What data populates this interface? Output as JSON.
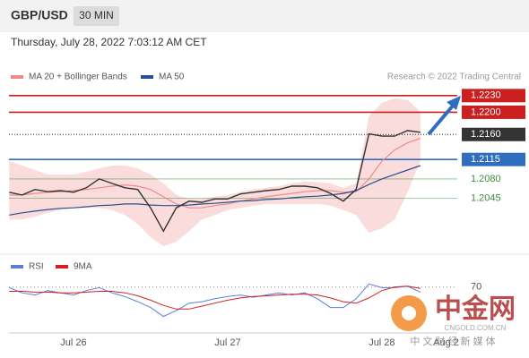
{
  "header": {
    "symbol": "GBP/USD",
    "timeframe": "30 MIN",
    "timestamp": "Thursday, July 28, 2022 7:03:12 AM CET",
    "credit": "Research © 2022 Trading Central"
  },
  "watermark": {
    "logo": "中金网",
    "site": "CNGOLD.COM.CN",
    "tagline": "中 文 财 经 新 媒 体"
  },
  "chart_data": [
    {
      "type": "line",
      "ylim": [
        1.1951,
        1.2249
      ],
      "color": "#333333",
      "values": [
        1.2056,
        1.2051,
        1.2061,
        1.2057,
        1.2059,
        1.2056,
        1.2064,
        1.208,
        1.2072,
        1.2064,
        1.2061,
        1.2028,
        1.1986,
        1.2028,
        1.204,
        1.2038,
        1.2044,
        1.2044,
        1.2053,
        1.2056,
        1.2059,
        1.2061,
        1.2067,
        1.2067,
        1.2064,
        1.2054,
        1.204,
        1.2061,
        1.2161,
        1.2157,
        1.2157,
        1.2167,
        1.2164,
        null,
        null
      ],
      "series": [
        {
          "name": "MA 20 + Bollinger Bands",
          "color": "#f08a8a",
          "band_color": "#fbdcdc",
          "values": [
            1.2051,
            1.2051,
            1.2054,
            1.2056,
            1.2057,
            1.2059,
            1.2061,
            1.2064,
            1.2067,
            1.2069,
            1.2067,
            1.2061,
            1.2048,
            1.2035,
            1.2028,
            1.2028,
            1.2032,
            1.2035,
            1.204,
            1.2044,
            1.2048,
            1.2051,
            1.2054,
            1.2057,
            1.2059,
            1.2059,
            1.2056,
            1.2057,
            1.208,
            1.2112,
            1.2132,
            1.2145,
            1.2153,
            null,
            null
          ],
          "upper": [
            1.2112,
            1.2104,
            1.2096,
            1.2088,
            1.2088,
            1.2088,
            1.2093,
            1.2099,
            1.2104,
            1.2104,
            1.2099,
            1.2088,
            1.2072,
            1.2051,
            1.2044,
            1.2044,
            1.2048,
            1.2051,
            1.2057,
            1.2061,
            1.2064,
            1.2067,
            1.2072,
            1.2075,
            1.2074,
            1.2072,
            1.2064,
            1.2072,
            1.2193,
            1.2217,
            1.2225,
            1.2222,
            1.2201,
            null,
            null
          ],
          "lower": [
            1.2007,
            1.2007,
            1.2012,
            1.2019,
            1.2024,
            1.2028,
            1.2028,
            1.2028,
            1.2024,
            1.2015,
            1.1999,
            1.1975,
            1.1959,
            1.1967,
            1.1986,
            1.2007,
            1.2015,
            1.2024,
            1.2028,
            1.2032,
            1.2035,
            1.2035,
            1.2035,
            1.2035,
            1.2035,
            1.2032,
            1.2024,
            1.2015,
            1.1983,
            1.1991,
            1.2007,
            1.2056,
            1.2112,
            null,
            null
          ]
        },
        {
          "name": "MA 50",
          "color": "#2a4f8f",
          "values": [
            1.2015,
            1.2019,
            1.2022,
            1.2025,
            1.2027,
            1.2028,
            1.203,
            1.2032,
            1.2033,
            1.2035,
            1.2035,
            1.2033,
            1.2032,
            1.2032,
            1.2033,
            1.2035,
            1.2036,
            1.2038,
            1.204,
            1.2041,
            1.2043,
            1.2044,
            1.2046,
            1.2048,
            1.2049,
            1.2051,
            1.2054,
            1.2059,
            1.207,
            1.208,
            1.2088,
            1.2096,
            1.2104,
            null,
            null
          ]
        }
      ],
      "levels": [
        {
          "value": 1.223,
          "label": "1.2230",
          "color": "#cc1f1f",
          "box": true
        },
        {
          "value": 1.22,
          "label": "1.2200",
          "color": "#cc1f1f",
          "box": true
        },
        {
          "value": 1.216,
          "label": "1.2160",
          "color": "#333333",
          "box": true,
          "dash": true
        },
        {
          "value": 1.2115,
          "color": "#2f6ebf",
          "box": true
        },
        {
          "value": 1.208,
          "label": "1.2080",
          "color": "#3d8b3d",
          "box": false
        },
        {
          "value": 1.2045,
          "color": "#3d8b3d",
          "box": false
        }
      ]
    },
    {
      "type": "line",
      "ylim": [
        10,
        95
      ],
      "yticks": [
        70
      ],
      "categories": [
        null,
        null,
        null,
        null,
        null,
        "Jul 26",
        null,
        null,
        null,
        null,
        null,
        null,
        null,
        null,
        null,
        null,
        null,
        "Jul 27",
        null,
        null,
        null,
        null,
        null,
        null,
        null,
        null,
        null,
        null,
        null,
        "Jul 28",
        null,
        null,
        null,
        null,
        "Aug 2"
      ],
      "series": [
        {
          "name": "RSI",
          "color": "#5b7fd6",
          "values": [
            69,
            62,
            59,
            65,
            62,
            59,
            65,
            69,
            62,
            57,
            50,
            42,
            30,
            38,
            48,
            50,
            54,
            57,
            59,
            56,
            59,
            62,
            59,
            62,
            54,
            42,
            42,
            54,
            74,
            69,
            69,
            71,
            63,
            null,
            null
          ]
        },
        {
          "name": "9MA",
          "color": "#d62020",
          "values": [
            64,
            64,
            63,
            63,
            62,
            62,
            63,
            64,
            64,
            62,
            58,
            52,
            45,
            40,
            40,
            44,
            48,
            52,
            55,
            57,
            58,
            59,
            60,
            60,
            59,
            55,
            50,
            48,
            55,
            65,
            70,
            71,
            68,
            null,
            null
          ]
        }
      ]
    }
  ]
}
